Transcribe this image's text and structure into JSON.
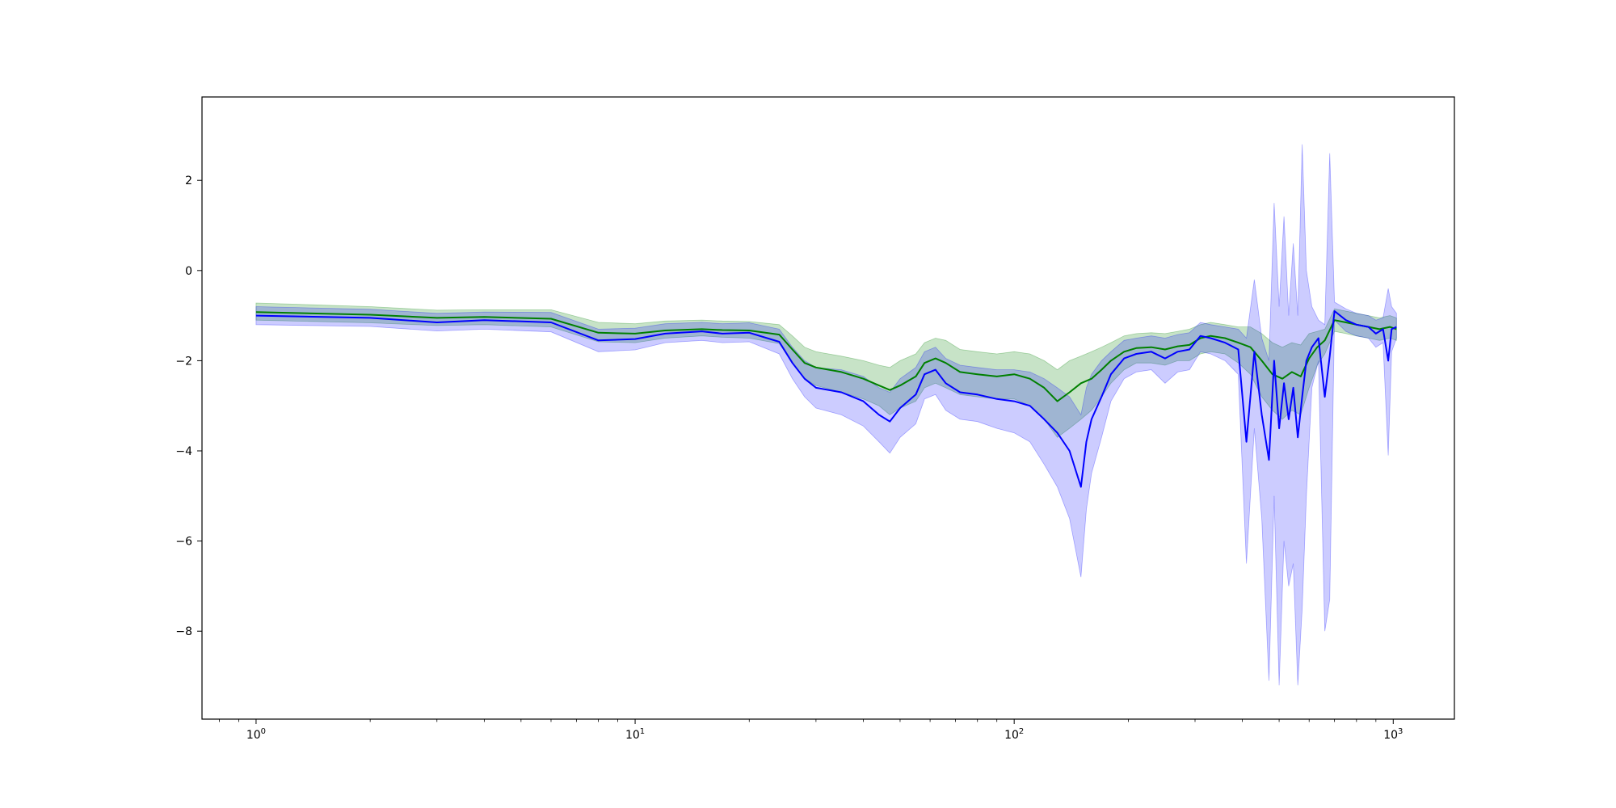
{
  "chart_data": {
    "type": "line",
    "title": "",
    "xlabel": "",
    "ylabel": "",
    "xscale": "log",
    "xlim": [
      0.72,
      1450
    ],
    "ylim": [
      -9.95,
      3.85
    ],
    "x_major_ticks": [
      {
        "value": 1,
        "base": "10",
        "exp": "0"
      },
      {
        "value": 10,
        "base": "10",
        "exp": "1"
      },
      {
        "value": 100,
        "base": "10",
        "exp": "2"
      },
      {
        "value": 1000,
        "base": "10",
        "exp": "3"
      }
    ],
    "y_ticks": [
      {
        "value": 2,
        "label": "2"
      },
      {
        "value": 0,
        "label": "0"
      },
      {
        "value": -2,
        "label": "−2"
      },
      {
        "value": -4,
        "label": "−4"
      },
      {
        "value": -6,
        "label": "−6"
      },
      {
        "value": -8,
        "label": "−8"
      }
    ],
    "grid": false,
    "legend": "none",
    "series": [
      {
        "color": "#008000",
        "band_color": "#008000",
        "band_opacity": 0.22,
        "points": [
          [
            1,
            -0.92,
            -0.72,
            -1.1
          ],
          [
            2,
            -0.98,
            -0.8,
            -1.16
          ],
          [
            3,
            -1.05,
            -0.88,
            -1.22
          ],
          [
            4,
            -1.03,
            -0.87,
            -1.2
          ],
          [
            6,
            -1.07,
            -0.87,
            -1.25
          ],
          [
            8,
            -1.38,
            -1.15,
            -1.58
          ],
          [
            10,
            -1.4,
            -1.18,
            -1.6
          ],
          [
            12,
            -1.33,
            -1.12,
            -1.5
          ],
          [
            15,
            -1.3,
            -1.1,
            -1.45
          ],
          [
            17,
            -1.32,
            -1.12,
            -1.48
          ],
          [
            20,
            -1.33,
            -1.13,
            -1.5
          ],
          [
            24,
            -1.42,
            -1.2,
            -1.62
          ],
          [
            26,
            -1.75,
            -1.45,
            -2.05
          ],
          [
            28,
            -2.05,
            -1.7,
            -2.4
          ],
          [
            30,
            -2.15,
            -1.8,
            -2.55
          ],
          [
            35,
            -2.25,
            -1.9,
            -2.7
          ],
          [
            40,
            -2.4,
            -2.0,
            -2.85
          ],
          [
            44,
            -2.55,
            -2.1,
            -3.0
          ],
          [
            47,
            -2.65,
            -2.15,
            -3.2
          ],
          [
            50,
            -2.55,
            -2.0,
            -3.05
          ],
          [
            55,
            -2.35,
            -1.85,
            -2.9
          ],
          [
            58,
            -2.05,
            -1.6,
            -2.6
          ],
          [
            62,
            -1.95,
            -1.5,
            -2.5
          ],
          [
            66,
            -2.05,
            -1.55,
            -2.6
          ],
          [
            72,
            -2.25,
            -1.75,
            -2.75
          ],
          [
            80,
            -2.3,
            -1.8,
            -2.8
          ],
          [
            90,
            -2.35,
            -1.85,
            -2.85
          ],
          [
            100,
            -2.3,
            -1.8,
            -2.85
          ],
          [
            110,
            -2.4,
            -1.85,
            -3.0
          ],
          [
            120,
            -2.6,
            -2.0,
            -3.3
          ],
          [
            130,
            -2.9,
            -2.2,
            -3.7
          ],
          [
            140,
            -2.7,
            -2.0,
            -3.5
          ],
          [
            150,
            -2.5,
            -1.9,
            -3.3
          ],
          [
            160,
            -2.4,
            -1.8,
            -3.1
          ],
          [
            170,
            -2.2,
            -1.7,
            -2.8
          ],
          [
            180,
            -2.0,
            -1.6,
            -2.5
          ],
          [
            195,
            -1.8,
            -1.45,
            -2.2
          ],
          [
            210,
            -1.72,
            -1.4,
            -2.05
          ],
          [
            230,
            -1.7,
            -1.38,
            -2.05
          ],
          [
            250,
            -1.75,
            -1.4,
            -2.1
          ],
          [
            270,
            -1.68,
            -1.35,
            -2.0
          ],
          [
            290,
            -1.65,
            -1.3,
            -2.0
          ],
          [
            310,
            -1.5,
            -1.2,
            -1.85
          ],
          [
            330,
            -1.45,
            -1.15,
            -1.8
          ],
          [
            360,
            -1.5,
            -1.2,
            -1.85
          ],
          [
            390,
            -1.6,
            -1.25,
            -2.05
          ],
          [
            420,
            -1.7,
            -1.25,
            -2.3
          ],
          [
            450,
            -2.0,
            -1.4,
            -2.8
          ],
          [
            480,
            -2.3,
            -1.6,
            -3.1
          ],
          [
            510,
            -2.4,
            -1.7,
            -3.3
          ],
          [
            540,
            -2.25,
            -1.6,
            -3.1
          ],
          [
            570,
            -2.35,
            -1.65,
            -3.2
          ],
          [
            600,
            -1.95,
            -1.4,
            -2.6
          ],
          [
            630,
            -1.7,
            -1.35,
            -2.1
          ],
          [
            660,
            -1.55,
            -1.3,
            -1.85
          ],
          [
            700,
            -1.1,
            -0.85,
            -1.35
          ],
          [
            750,
            -1.15,
            -0.9,
            -1.4
          ],
          [
            800,
            -1.2,
            -0.95,
            -1.45
          ],
          [
            860,
            -1.25,
            -1.0,
            -1.5
          ],
          [
            920,
            -1.3,
            -1.05,
            -1.55
          ],
          [
            980,
            -1.25,
            -1.0,
            -1.5
          ],
          [
            1020,
            -1.3,
            -1.05,
            -1.55
          ]
        ]
      },
      {
        "color": "#0000ff",
        "band_color": "#0000ff",
        "band_opacity": 0.2,
        "points": [
          [
            1,
            -1.0,
            -0.8,
            -1.2
          ],
          [
            2,
            -1.05,
            -0.86,
            -1.24
          ],
          [
            3,
            -1.15,
            -0.95,
            -1.34
          ],
          [
            4,
            -1.1,
            -0.92,
            -1.3
          ],
          [
            6,
            -1.15,
            -0.93,
            -1.36
          ],
          [
            8,
            -1.55,
            -1.3,
            -1.8
          ],
          [
            10,
            -1.52,
            -1.28,
            -1.76
          ],
          [
            12,
            -1.4,
            -1.18,
            -1.6
          ],
          [
            15,
            -1.35,
            -1.15,
            -1.55
          ],
          [
            17,
            -1.4,
            -1.18,
            -1.6
          ],
          [
            20,
            -1.38,
            -1.16,
            -1.58
          ],
          [
            24,
            -1.58,
            -1.3,
            -1.85
          ],
          [
            26,
            -2.05,
            -1.7,
            -2.4
          ],
          [
            28,
            -2.4,
            -2.0,
            -2.8
          ],
          [
            30,
            -2.6,
            -2.15,
            -3.05
          ],
          [
            35,
            -2.7,
            -2.2,
            -3.2
          ],
          [
            40,
            -2.9,
            -2.35,
            -3.45
          ],
          [
            44,
            -3.2,
            -2.6,
            -3.8
          ],
          [
            47,
            -3.35,
            -2.7,
            -4.05
          ],
          [
            50,
            -3.05,
            -2.4,
            -3.7
          ],
          [
            55,
            -2.75,
            -2.15,
            -3.4
          ],
          [
            58,
            -2.3,
            -1.8,
            -2.85
          ],
          [
            62,
            -2.2,
            -1.7,
            -2.75
          ],
          [
            66,
            -2.5,
            -1.95,
            -3.1
          ],
          [
            72,
            -2.7,
            -2.1,
            -3.3
          ],
          [
            80,
            -2.75,
            -2.15,
            -3.35
          ],
          [
            90,
            -2.85,
            -2.2,
            -3.5
          ],
          [
            100,
            -2.9,
            -2.2,
            -3.6
          ],
          [
            110,
            -3.0,
            -2.25,
            -3.8
          ],
          [
            120,
            -3.3,
            -2.4,
            -4.3
          ],
          [
            130,
            -3.6,
            -2.6,
            -4.8
          ],
          [
            140,
            -4.0,
            -2.8,
            -5.5
          ],
          [
            150,
            -4.8,
            -3.2,
            -6.8
          ],
          [
            155,
            -3.8,
            -2.6,
            -5.3
          ],
          [
            160,
            -3.3,
            -2.3,
            -4.5
          ],
          [
            170,
            -2.8,
            -2.0,
            -3.7
          ],
          [
            180,
            -2.3,
            -1.8,
            -2.9
          ],
          [
            195,
            -1.95,
            -1.55,
            -2.4
          ],
          [
            210,
            -1.85,
            -1.5,
            -2.25
          ],
          [
            230,
            -1.8,
            -1.45,
            -2.2
          ],
          [
            250,
            -1.95,
            -1.5,
            -2.5
          ],
          [
            270,
            -1.8,
            -1.42,
            -2.25
          ],
          [
            290,
            -1.75,
            -1.38,
            -2.2
          ],
          [
            310,
            -1.45,
            -1.15,
            -1.8
          ],
          [
            330,
            -1.5,
            -1.2,
            -1.85
          ],
          [
            360,
            -1.6,
            -1.25,
            -2.0
          ],
          [
            390,
            -1.75,
            -1.3,
            -2.3
          ],
          [
            410,
            -3.8,
            -1.5,
            -6.5
          ],
          [
            430,
            -1.8,
            -0.2,
            -3.5
          ],
          [
            450,
            -3.2,
            -1.5,
            -5.5
          ],
          [
            470,
            -4.2,
            -2.0,
            -9.1
          ],
          [
            485,
            -2.0,
            1.5,
            -5.0
          ],
          [
            500,
            -3.5,
            -0.8,
            -9.2
          ],
          [
            515,
            -2.5,
            1.2,
            -6.0
          ],
          [
            530,
            -3.3,
            -1.0,
            -7.0
          ],
          [
            545,
            -2.6,
            0.6,
            -6.5
          ],
          [
            560,
            -3.7,
            -1.0,
            -9.2
          ],
          [
            575,
            -2.8,
            2.8,
            -7.5
          ],
          [
            590,
            -2.0,
            0.0,
            -5.0
          ],
          [
            610,
            -1.7,
            -0.8,
            -2.6
          ],
          [
            635,
            -1.5,
            -1.1,
            -2.0
          ],
          [
            660,
            -2.8,
            -1.2,
            -8.0
          ],
          [
            680,
            -1.9,
            2.6,
            -7.3
          ],
          [
            700,
            -0.9,
            -0.7,
            -1.1
          ],
          [
            750,
            -1.1,
            -0.85,
            -1.35
          ],
          [
            800,
            -1.2,
            -0.95,
            -1.45
          ],
          [
            860,
            -1.25,
            -1.0,
            -1.5
          ],
          [
            900,
            -1.4,
            -1.1,
            -1.7
          ],
          [
            940,
            -1.3,
            -1.05,
            -1.6
          ],
          [
            970,
            -2.0,
            -0.4,
            -4.1
          ],
          [
            990,
            -1.3,
            -0.8,
            -1.8
          ],
          [
            1020,
            -1.25,
            -0.95,
            -1.5
          ]
        ]
      }
    ]
  }
}
